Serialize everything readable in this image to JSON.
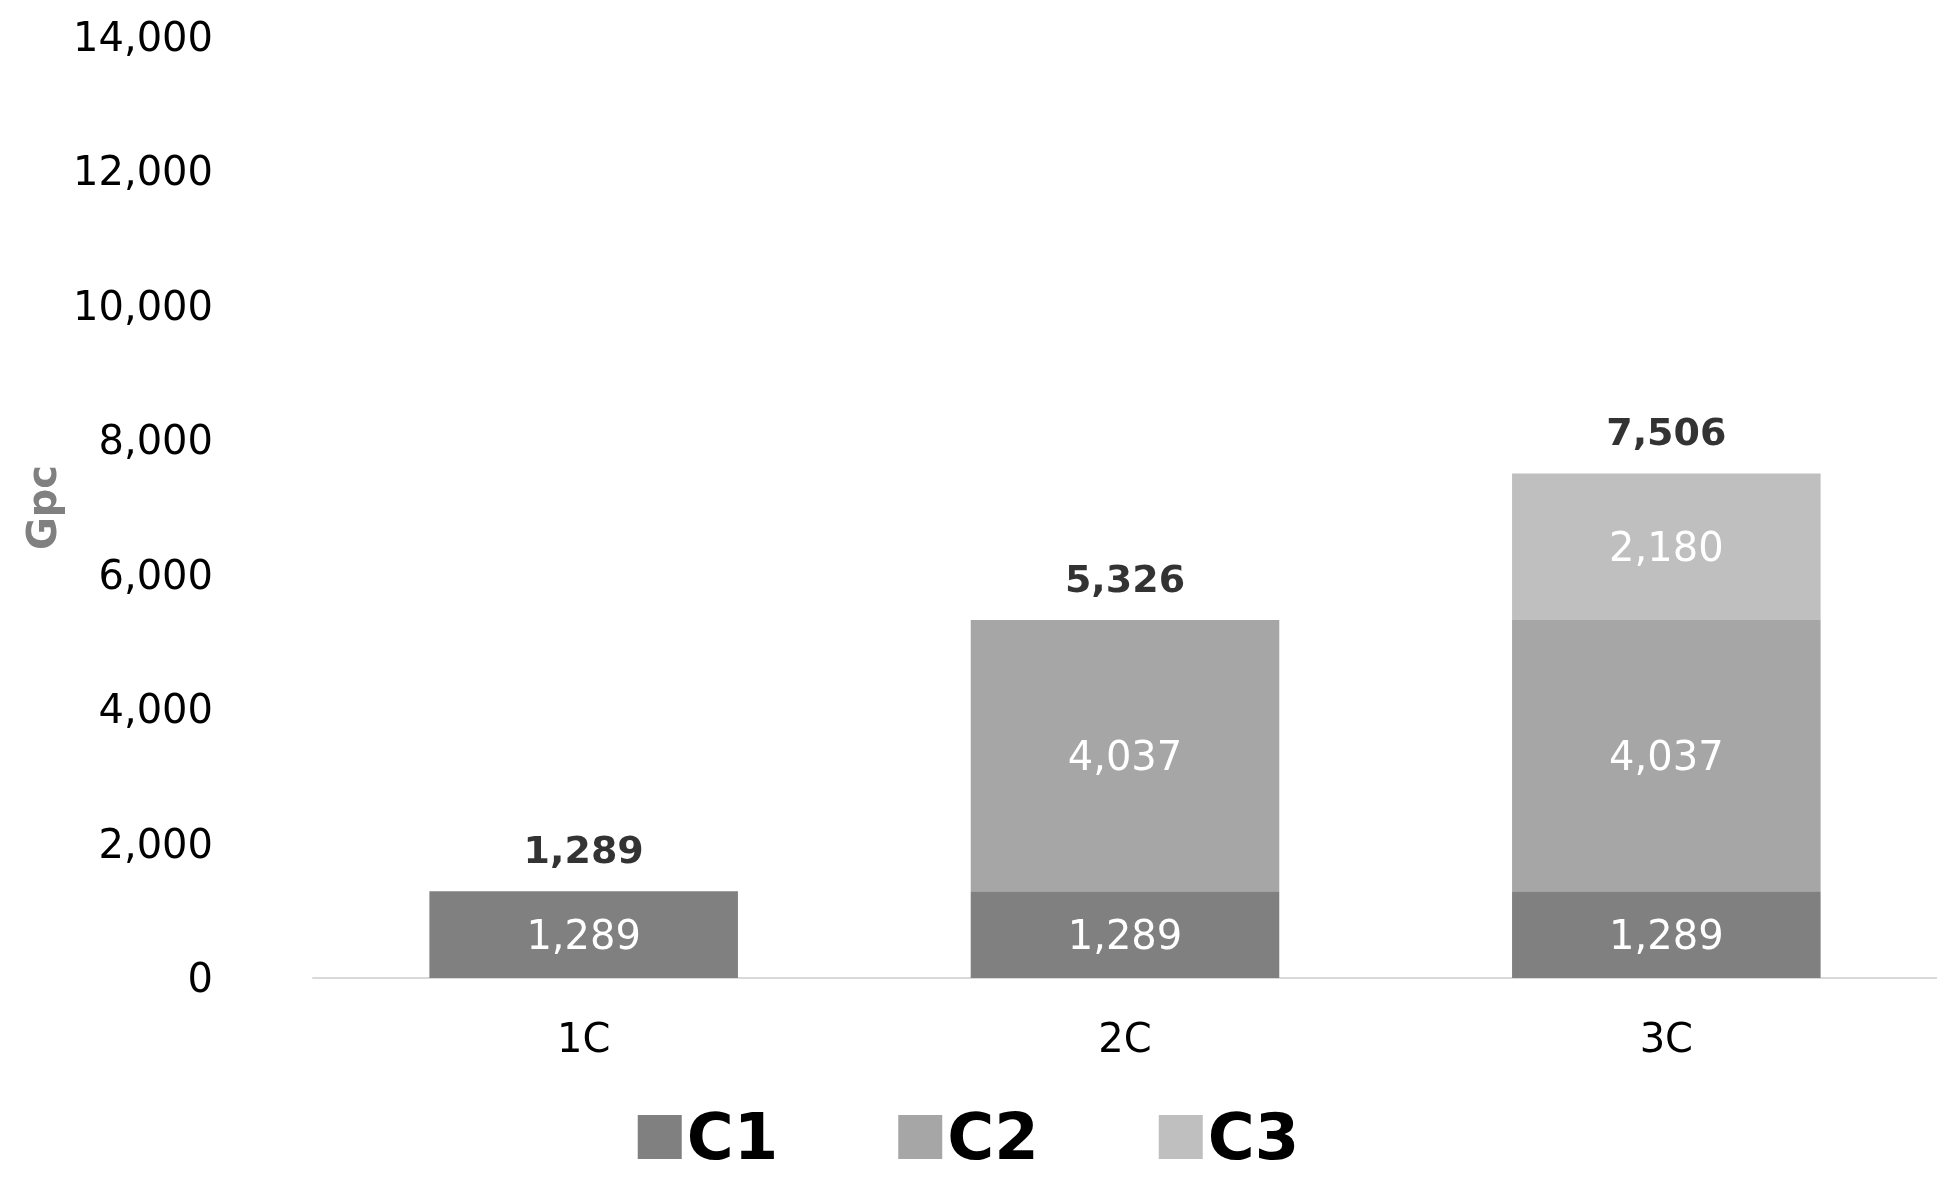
{
  "chart_data": {
    "type": "bar",
    "stacked": true,
    "categories": [
      "1C",
      "2C",
      "3C"
    ],
    "ylabel": "Gpc",
    "series": [
      {
        "name": "C1",
        "color": "#808080",
        "values": [
          1289,
          1289,
          1289
        ],
        "value_labels": [
          "1,289",
          "1,289",
          "1,289"
        ]
      },
      {
        "name": "C2",
        "color": "#a6a6a6",
        "values": [
          null,
          4037,
          4037
        ],
        "value_labels": [
          null,
          "4,037",
          "4,037"
        ]
      },
      {
        "name": "C3",
        "color": "#bfbfbf",
        "values": [
          null,
          null,
          2180
        ],
        "value_labels": [
          null,
          null,
          "2,180"
        ]
      }
    ],
    "totals": [
      "1,289",
      "5,326",
      "7,506"
    ],
    "ylim": [
      0,
      14000
    ],
    "yticks": [
      {
        "value": 0,
        "label": "0"
      },
      {
        "value": 2000,
        "label": "2,000"
      },
      {
        "value": 4000,
        "label": "4,000"
      },
      {
        "value": 6000,
        "label": "6,000"
      },
      {
        "value": 8000,
        "label": "8,000"
      },
      {
        "value": 10000,
        "label": "10,000"
      },
      {
        "value": 12000,
        "label": "12,000"
      },
      {
        "value": 14000,
        "label": "14,000"
      }
    ],
    "grid": false,
    "legend": "bottom"
  }
}
